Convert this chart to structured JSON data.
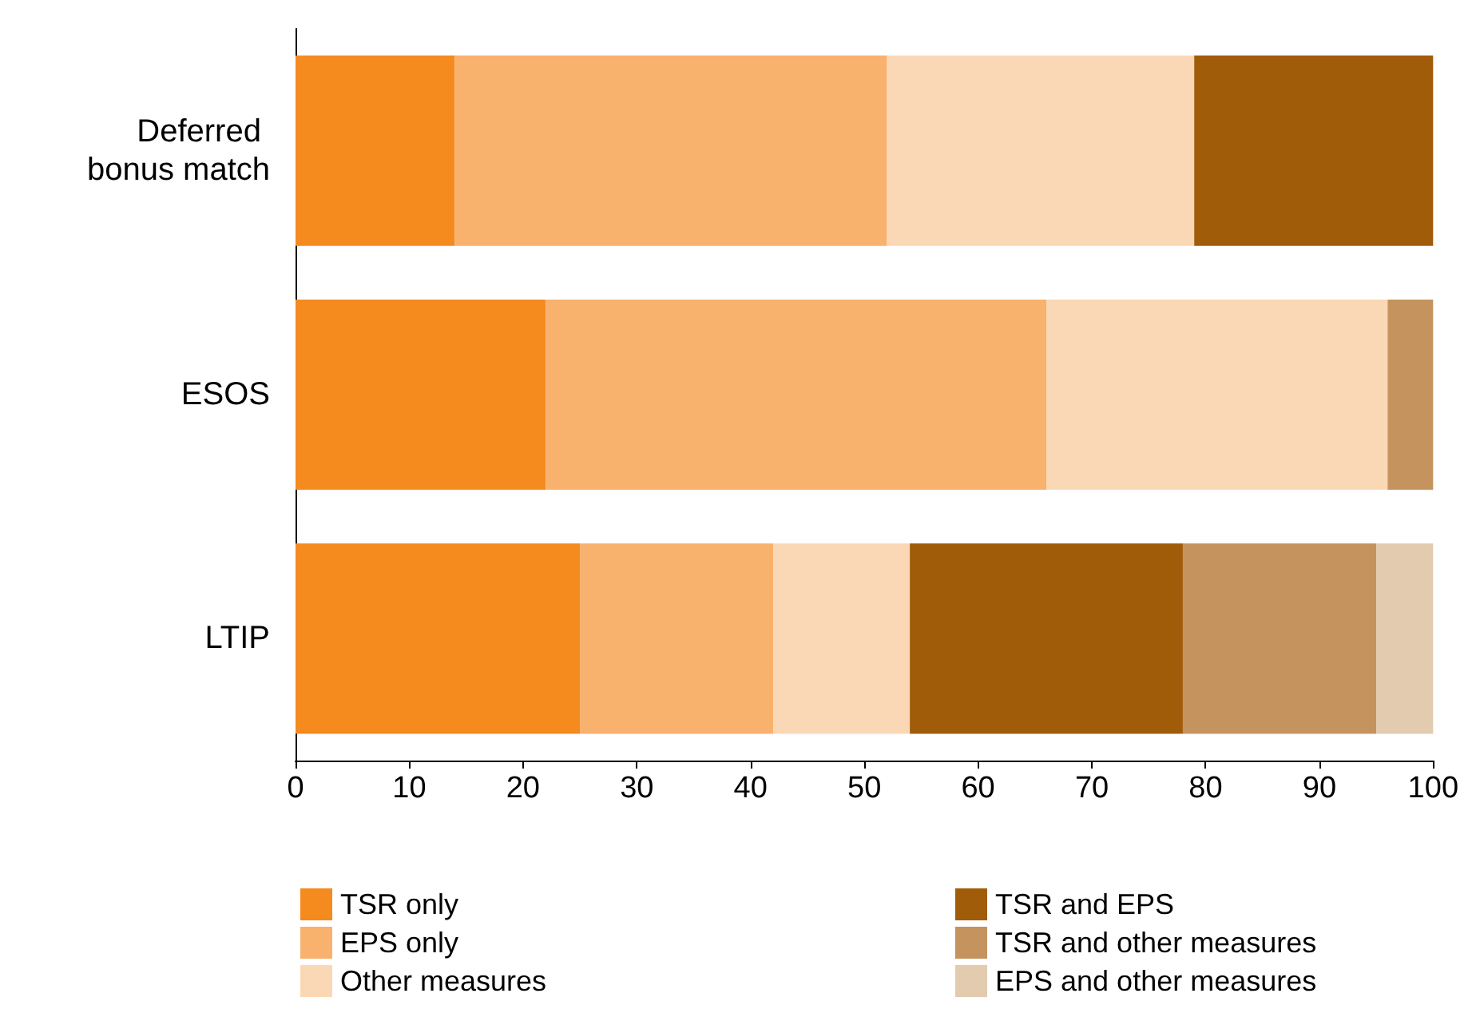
{
  "chart_data": {
    "type": "bar",
    "orientation": "horizontal",
    "stacked": true,
    "categories": [
      "Deferred bonus match",
      "ESOS",
      "LTIP"
    ],
    "series": [
      {
        "name": "TSR only",
        "color": "#f58a1f",
        "values": [
          14,
          22,
          25
        ]
      },
      {
        "name": "EPS only",
        "color": "#f9b16e",
        "values": [
          38,
          44,
          17
        ]
      },
      {
        "name": "Other measures",
        "color": "#fbd8b5",
        "values": [
          27,
          30,
          12
        ]
      },
      {
        "name": "TSR and EPS",
        "color": "#a15c0a",
        "values": [
          21,
          null,
          24
        ]
      },
      {
        "name": "TSR and other measures",
        "color": "#c4935e",
        "values": [
          null,
          4,
          17
        ]
      },
      {
        "name": "EPS and other measures",
        "color": "#e3cbb0",
        "values": [
          null,
          null,
          5
        ]
      }
    ],
    "xlim": [
      0,
      100
    ],
    "xticks": [
      0,
      10,
      20,
      30,
      40,
      50,
      60,
      70,
      80,
      90,
      100
    ],
    "grid": false,
    "legend": "bottom"
  }
}
